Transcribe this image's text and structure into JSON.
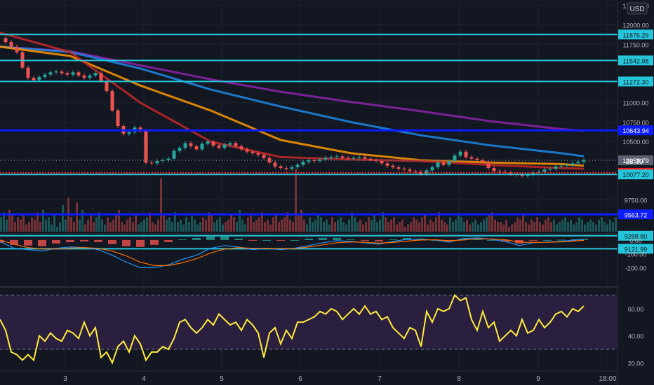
{
  "currency": "USD",
  "countdown": "38:39",
  "colors": {
    "background": "#131722",
    "grid": "#1e222d",
    "up_candle": "#26a69a",
    "down_candle": "#ef5350",
    "cyan_level": "#26c6da",
    "blue_level": "#0b1cff",
    "red_level": "#ff1a1a",
    "ma_purple": "#8e24aa",
    "ma_blue": "#1e88e5",
    "ma_orange": "#ff9800",
    "ma_red": "#c62828",
    "rsi_line": "#ffeb3b",
    "rsi_band": "#2a1f3f",
    "macd_line": "#2196f3",
    "signal_line": "#ff6d00"
  },
  "chart_data": [
    {
      "type": "candlestick",
      "panel": "price",
      "ylim": [
        9620,
        12320
      ],
      "y_ticks": [
        {
          "value": 12250,
          "label": "12250.00"
        },
        {
          "value": 12000,
          "label": "12000.00"
        },
        {
          "value": 11750,
          "label": "11750.00"
        },
        {
          "value": 11000,
          "label": "11000.00"
        },
        {
          "value": 10750,
          "label": "10750.00"
        },
        {
          "value": 10500,
          "label": "10500.00"
        },
        {
          "value": 9750,
          "label": "9750.00"
        }
      ],
      "x_ticks": [
        {
          "pos": 93,
          "label": "3"
        },
        {
          "pos": 205,
          "label": "4"
        },
        {
          "pos": 316,
          "label": "5"
        },
        {
          "pos": 428,
          "label": "6"
        },
        {
          "pos": 541,
          "label": "7"
        },
        {
          "pos": 654,
          "label": "8"
        },
        {
          "pos": 767,
          "label": "9"
        },
        {
          "pos": 866,
          "label": "18:00"
        }
      ],
      "horizontal_levels": [
        {
          "value": 11876.29,
          "label": "11876.29",
          "color": "cyan"
        },
        {
          "value": 11542.98,
          "label": "11542.98",
          "color": "cyan"
        },
        {
          "value": 11272.3,
          "label": "11272.30",
          "color": "cyan"
        },
        {
          "value": 10643.94,
          "label": "10643.94",
          "color": "blue"
        },
        {
          "value": 10258.79,
          "label": "10258.79",
          "color": "gray"
        },
        {
          "value": 10097.74,
          "label": "10097.74",
          "color": "red"
        },
        {
          "value": 10077.2,
          "label": "10077.20",
          "color": "cyan"
        },
        {
          "value": 9563.72,
          "label": "9563.72",
          "color": "blue"
        },
        {
          "value": 9288.8,
          "label": "9288.80",
          "color": "cyan"
        },
        {
          "value": 9121.99,
          "label": "9121.99",
          "color": "cyan"
        }
      ],
      "close_series_x": [
        0,
        8,
        16,
        24,
        32,
        40,
        48,
        56,
        64,
        72,
        80,
        88,
        96,
        104,
        112,
        120,
        128,
        136,
        144,
        152,
        160,
        168,
        176,
        184,
        192,
        200,
        208,
        216,
        224,
        232,
        240,
        248,
        256,
        264,
        272,
        280,
        288,
        296,
        304,
        312,
        320,
        328,
        336,
        344,
        352,
        360,
        368,
        376,
        384,
        392,
        400,
        408,
        416,
        424,
        432,
        440,
        448,
        456,
        464,
        472,
        480,
        488,
        496,
        504,
        512,
        520,
        528,
        536,
        544,
        552,
        560,
        568,
        576,
        584,
        592,
        600,
        608,
        616,
        624,
        632,
        640,
        648,
        656,
        664,
        672,
        680,
        688,
        696,
        704,
        712,
        720,
        728,
        736,
        744,
        752,
        760,
        768,
        776,
        784,
        792,
        800,
        808,
        816,
        824,
        832
      ],
      "close_series": [
        11830,
        11780,
        11720,
        11650,
        11450,
        11320,
        11290,
        11330,
        11360,
        11390,
        11400,
        11380,
        11360,
        11390,
        11350,
        11320,
        11350,
        11380,
        11280,
        11150,
        10900,
        10700,
        10600,
        10620,
        10680,
        10640,
        10230,
        10220,
        10250,
        10260,
        10280,
        10380,
        10420,
        10480,
        10440,
        10400,
        10470,
        10500,
        10450,
        10420,
        10460,
        10480,
        10440,
        10400,
        10370,
        10350,
        10330,
        10290,
        10230,
        10180,
        10160,
        10150,
        10170,
        10200,
        10240,
        10260,
        10250,
        10270,
        10290,
        10300,
        10310,
        10290,
        10280,
        10290,
        10300,
        10280,
        10260,
        10250,
        10220,
        10190,
        10170,
        10150,
        10140,
        10120,
        10110,
        10080,
        10130,
        10170,
        10230,
        10200,
        10250,
        10320,
        10370,
        10300,
        10280,
        10260,
        10240,
        10160,
        10120,
        10110,
        10100,
        10080,
        10070,
        10060,
        10080,
        10100,
        10110,
        10140,
        10150,
        10180,
        10190,
        10200,
        10220,
        10240,
        10258.79
      ],
      "moving_averages": [
        {
          "color": "purple",
          "x": [
            0,
            100,
            200,
            300,
            400,
            500,
            600,
            700,
            800,
            832
          ],
          "values": [
            11720,
            11660,
            11480,
            11300,
            11140,
            11010,
            10890,
            10760,
            10660,
            10640
          ]
        },
        {
          "color": "blue",
          "x": [
            0,
            100,
            200,
            300,
            400,
            500,
            600,
            700,
            800,
            832
          ],
          "values": [
            11720,
            11650,
            11440,
            11170,
            10950,
            10750,
            10580,
            10450,
            10350,
            10310
          ]
        },
        {
          "color": "orange",
          "x": [
            0,
            100,
            200,
            300,
            400,
            500,
            600,
            700,
            800,
            832
          ],
          "values": [
            11720,
            11600,
            11220,
            10900,
            10520,
            10350,
            10260,
            10230,
            10210,
            10190
          ]
        },
        {
          "color": "red",
          "x": [
            0,
            100,
            200,
            300,
            400,
            500,
            600,
            700,
            800,
            832
          ],
          "values": [
            11900,
            11650,
            11000,
            10500,
            10300,
            10270,
            10250,
            10200,
            10160,
            10150
          ]
        }
      ]
    },
    {
      "type": "bar",
      "panel": "volume",
      "values": [
        6,
        8,
        5,
        9,
        7,
        4,
        6,
        5,
        7,
        3,
        4,
        6,
        5,
        8,
        4,
        9,
        5,
        6,
        3,
        7,
        2,
        4,
        11,
        5,
        14,
        6,
        4,
        12,
        5,
        9,
        3,
        5,
        7,
        4,
        6,
        8,
        5,
        3,
        6,
        4,
        5,
        7,
        9,
        4,
        3,
        5,
        6,
        4,
        7,
        3,
        4,
        5,
        6,
        8,
        4,
        3,
        5,
        22,
        7,
        5,
        6,
        4,
        8,
        4,
        5,
        3,
        6,
        4,
        7,
        5,
        3,
        4,
        6,
        5,
        8,
        7,
        4,
        5,
        6,
        3,
        4,
        5,
        7,
        6,
        4,
        9,
        5,
        3,
        6,
        7,
        4,
        5,
        6,
        8,
        4,
        5,
        3,
        6,
        7,
        4,
        5,
        6,
        8,
        5,
        4,
        26,
        7,
        9,
        5,
        3,
        6,
        4,
        5,
        7,
        6,
        4,
        5,
        3,
        6,
        4,
        5,
        6,
        4,
        3,
        5,
        8,
        6,
        4,
        5,
        3,
        4,
        6,
        5,
        7,
        4,
        5,
        8,
        6,
        4,
        5,
        6,
        3,
        4,
        5,
        2,
        3,
        4,
        6,
        5,
        4,
        6,
        7,
        3,
        5,
        4,
        6,
        8,
        5,
        4,
        3,
        6,
        4,
        5,
        7,
        6,
        4,
        5,
        3,
        4,
        5,
        3,
        4,
        5,
        6,
        7,
        8,
        5,
        4,
        4,
        3,
        5,
        2,
        3,
        4,
        6,
        5,
        7,
        4,
        3,
        5,
        4,
        6,
        4,
        3,
        5,
        6,
        4,
        5,
        3,
        4,
        5,
        6,
        4,
        5,
        3,
        4,
        6,
        5,
        3,
        4,
        5,
        4,
        3,
        5,
        6,
        4,
        3,
        5,
        4,
        6
      ]
    },
    {
      "type": "line",
      "panel": "macd",
      "ylim": [
        -330,
        40
      ],
      "y_ticks": [
        {
          "value": 0,
          "label": "0.00"
        },
        {
          "value": -100,
          "label": "-100.00"
        },
        {
          "value": -200,
          "label": "-200.00"
        }
      ],
      "x": [
        0,
        20,
        40,
        60,
        80,
        100,
        120,
        140,
        160,
        180,
        200,
        220,
        240,
        260,
        280,
        300,
        320,
        340,
        360,
        380,
        400,
        420,
        440,
        460,
        480,
        500,
        520,
        540,
        560,
        580,
        600,
        620,
        640,
        660,
        680,
        700,
        720,
        740,
        760,
        780,
        800,
        820,
        832
      ],
      "series": [
        {
          "color": "blue",
          "values": [
            -10,
            -60,
            -70,
            -80,
            -60,
            -50,
            -55,
            -70,
            -110,
            -160,
            -200,
            -200,
            -180,
            -140,
            -110,
            -60,
            -40,
            -50,
            -70,
            -60,
            -70,
            -60,
            -40,
            -20,
            -5,
            -10,
            -20,
            -30,
            -10,
            5,
            5,
            0,
            -15,
            10,
            15,
            5,
            -10,
            -40,
            -20,
            -15,
            -10,
            0,
            5
          ]
        },
        {
          "color": "orange",
          "values": [
            0,
            -30,
            -55,
            -65,
            -65,
            -58,
            -55,
            -60,
            -80,
            -115,
            -160,
            -185,
            -185,
            -165,
            -135,
            -95,
            -65,
            -55,
            -60,
            -60,
            -65,
            -62,
            -50,
            -35,
            -20,
            -14,
            -17,
            -23,
            -18,
            -8,
            0,
            2,
            -5,
            0,
            8,
            8,
            2,
            -15,
            -18,
            -17,
            -13,
            -6,
            -3
          ]
        }
      ],
      "histogram": [
        -20,
        -35,
        -40,
        -45,
        -25,
        -15,
        -10,
        -15,
        -30,
        -45,
        -50,
        -35,
        -15,
        5,
        15,
        25,
        30,
        10,
        -5,
        0,
        -5,
        0,
        10,
        15,
        15,
        5,
        -5,
        -10,
        5,
        15,
        10,
        0,
        -10,
        10,
        10,
        0,
        -12,
        -25,
        -5,
        0,
        2,
        6,
        8
      ]
    },
    {
      "type": "line",
      "panel": "rsi",
      "ylim": [
        15,
        75
      ],
      "y_ticks": [
        {
          "value": 60,
          "label": "60.00"
        },
        {
          "value": 40,
          "label": "40.00"
        },
        {
          "value": 20,
          "label": "20.00"
        }
      ],
      "bands": [
        30,
        70
      ],
      "x": [
        0,
        8,
        16,
        24,
        32,
        40,
        48,
        56,
        64,
        72,
        80,
        88,
        96,
        104,
        112,
        120,
        128,
        136,
        144,
        152,
        160,
        168,
        176,
        184,
        192,
        200,
        208,
        216,
        224,
        232,
        240,
        248,
        256,
        264,
        272,
        280,
        288,
        296,
        304,
        312,
        320,
        328,
        336,
        344,
        352,
        360,
        368,
        376,
        384,
        392,
        400,
        408,
        416,
        424,
        432,
        440,
        448,
        456,
        464,
        472,
        480,
        488,
        496,
        504,
        512,
        520,
        528,
        536,
        544,
        552,
        560,
        568,
        576,
        584,
        592,
        600,
        608,
        616,
        624,
        632,
        640,
        648,
        656,
        664,
        672,
        680,
        688,
        696,
        704,
        712,
        720,
        728,
        736,
        744,
        752,
        760,
        768,
        776,
        784,
        792,
        800,
        808,
        816,
        824,
        832
      ],
      "values": [
        52,
        44,
        28,
        26,
        22,
        26,
        22,
        40,
        36,
        42,
        38,
        36,
        44,
        42,
        38,
        50,
        40,
        46,
        24,
        28,
        20,
        32,
        36,
        28,
        40,
        34,
        22,
        28,
        28,
        32,
        30,
        38,
        50,
        52,
        46,
        42,
        46,
        52,
        48,
        56,
        52,
        48,
        50,
        44,
        52,
        48,
        42,
        24,
        42,
        46,
        34,
        44,
        38,
        50,
        50,
        52,
        54,
        58,
        56,
        60,
        58,
        52,
        56,
        60,
        56,
        62,
        56,
        58,
        52,
        54,
        46,
        42,
        38,
        46,
        44,
        32,
        58,
        50,
        60,
        58,
        60,
        70,
        66,
        68,
        52,
        44,
        58,
        46,
        50,
        36,
        40,
        44,
        40,
        52,
        42,
        44,
        52,
        46,
        50,
        56,
        58,
        54,
        60,
        58,
        62
      ]
    }
  ]
}
